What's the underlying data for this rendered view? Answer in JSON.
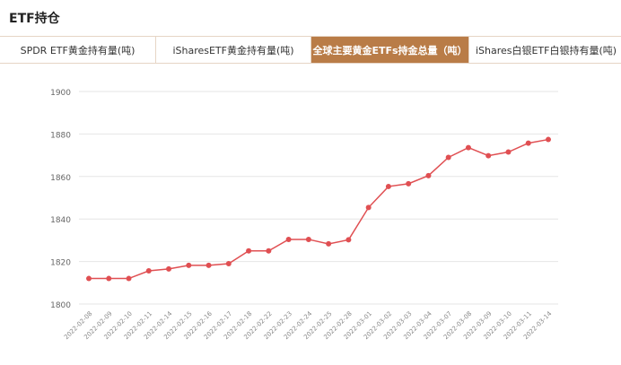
{
  "header": {
    "title": "ETF持仓"
  },
  "tabs": [
    {
      "label": "SPDR ETF黄金持有量(吨)"
    },
    {
      "label": "iSharesETF黄金持有量(吨)"
    },
    {
      "label": "全球主要黄金ETFs持金总量（吨）",
      "active": true
    },
    {
      "label": "iShares白银ETF白银持有量(吨)"
    }
  ],
  "colors": {
    "line": "#e04f52",
    "accent": "#b97c47"
  },
  "chart_data": {
    "type": "line",
    "title": "全球主要黄金ETFs持金总量（吨）",
    "xlabel": "",
    "ylabel": "",
    "ylim": [
      1800,
      1900
    ],
    "yticks": [
      1800,
      1820,
      1840,
      1860,
      1880,
      1900
    ],
    "grid": true,
    "categories": [
      "2022-02-08",
      "2022-02-09",
      "2022-02-10",
      "2022-02-11",
      "2022-02-14",
      "2022-02-15",
      "2022-02-16",
      "2022-02-17",
      "2022-02-18",
      "2022-02-22",
      "2022-02-23",
      "2022-02-24",
      "2022-02-25",
      "2022-02-28",
      "2022-03-01",
      "2022-03-02",
      "2022-03-03",
      "2022-03-04",
      "2022-03-07",
      "2022-03-08",
      "2022-03-09",
      "2022-03-10",
      "2022-03-11",
      "2022-03-14"
    ],
    "series": [
      {
        "name": "持金总量",
        "values": [
          1812,
          1812,
          1812,
          1815.6,
          1816.5,
          1818.2,
          1818.2,
          1819,
          1825,
          1825,
          1830.4,
          1830.4,
          1828.3,
          1830.2,
          1845.4,
          1855.3,
          1856.6,
          1860.4,
          1869,
          1873.6,
          1869.8,
          1871.5,
          1875.7,
          1877.4
        ]
      }
    ]
  }
}
